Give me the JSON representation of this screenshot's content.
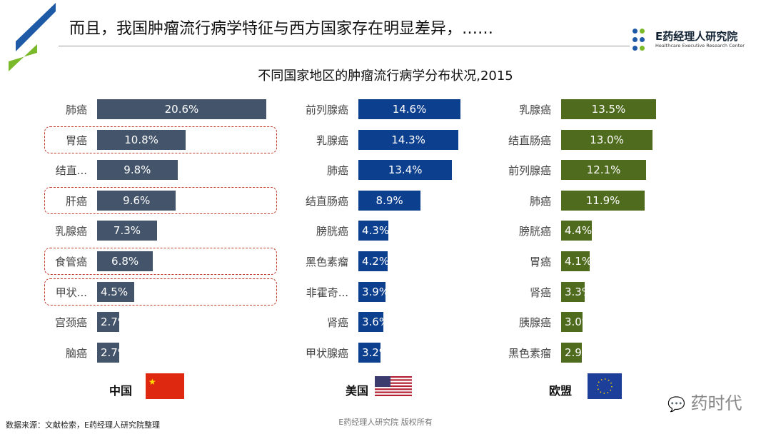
{
  "header": {
    "title": "而且，我国肿瘤流行病学特征与西方国家存在明显差异，……",
    "logo_name": "E药经理人研究院",
    "logo_en": "Healthcare Executive Research Center"
  },
  "chart_data": [
    {
      "type": "bar",
      "orientation": "horizontal",
      "subtitle": "不同国家地区的肿瘤流行病学分布状况,2015",
      "country": "中国",
      "color": "#44546a",
      "categories": [
        "肺癌",
        "胃癌",
        "结直...",
        "肝癌",
        "乳腺癌",
        "食管癌",
        "甲状...",
        "宫颈癌",
        "脑癌"
      ],
      "values": [
        20.6,
        10.8,
        9.8,
        9.6,
        7.3,
        6.8,
        4.5,
        2.7,
        2.7
      ],
      "highlighted": [
        "胃癌",
        "肝癌",
        "食管癌",
        "甲状..."
      ]
    },
    {
      "type": "bar",
      "orientation": "horizontal",
      "country": "美国",
      "color": "#0d3f8f",
      "categories": [
        "前列腺癌",
        "乳腺癌",
        "肺癌",
        "结直肠癌",
        "膀胱癌",
        "黑色素瘤",
        "非霍奇...",
        "肾癌",
        "甲状腺癌"
      ],
      "values": [
        14.6,
        14.3,
        13.4,
        8.9,
        4.3,
        4.2,
        3.9,
        3.6,
        3.2
      ]
    },
    {
      "type": "bar",
      "orientation": "horizontal",
      "country": "欧盟",
      "color": "#4f6b1e",
      "categories": [
        "乳腺癌",
        "结直肠癌",
        "前列腺癌",
        "肺癌",
        "膀胱癌",
        "胃癌",
        "肾癌",
        "胰腺癌",
        "黑色素瘤"
      ],
      "values": [
        13.5,
        13.0,
        12.1,
        11.9,
        4.4,
        4.1,
        3.3,
        3.0,
        2.9
      ]
    }
  ],
  "footer": {
    "source": "数据来源：文献检索，E药经理人研究院整理",
    "copyright": "E药经理人研究院 版权所有",
    "watermark": "药时代"
  }
}
